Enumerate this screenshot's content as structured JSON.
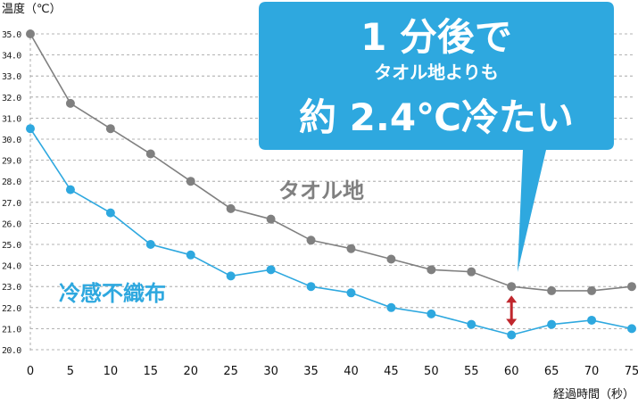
{
  "chart_data": {
    "type": "line",
    "ylabel": "温度（℃）",
    "xlabel": "経過時間（秒）",
    "x": [
      0,
      5,
      10,
      15,
      20,
      25,
      30,
      35,
      40,
      45,
      50,
      55,
      60,
      65,
      70,
      75
    ],
    "xlim": [
      0,
      75
    ],
    "ylim": [
      20.0,
      35.0
    ],
    "y_ticks": [
      "35.0",
      "34.0",
      "33.0",
      "32.0",
      "31.0",
      "30.0",
      "29.0",
      "28.0",
      "27.0",
      "26.0",
      "25.0",
      "24.0",
      "23.0",
      "22.0",
      "21.0",
      "20.0"
    ],
    "x_ticks": [
      "0",
      "5",
      "10",
      "15",
      "20",
      "25",
      "30",
      "35",
      "40",
      "45",
      "50",
      "55",
      "60",
      "65",
      "70",
      "75"
    ],
    "grid": "horizontal dashed",
    "series": [
      {
        "name": "タオル地",
        "color": "#808080",
        "values": [
          35.0,
          31.7,
          30.5,
          29.3,
          28.0,
          26.7,
          26.2,
          25.2,
          24.8,
          24.3,
          23.8,
          23.7,
          23.0,
          22.8,
          22.8,
          23.0
        ]
      },
      {
        "name": "冷感不織布",
        "color": "#2ea8df",
        "values": [
          30.5,
          27.6,
          26.5,
          25.0,
          24.5,
          23.5,
          23.8,
          23.0,
          22.7,
          22.0,
          21.7,
          21.2,
          20.7,
          21.2,
          21.4,
          21.0
        ]
      }
    ],
    "annotations": {
      "callout_line1": "1 分後で",
      "callout_line2": "タオル地よりも",
      "callout_line3": "約 2.4℃冷たい",
      "callout_color": "#2ea8df",
      "difference_arrow_color": "#c0272d",
      "difference_at_x": 60
    }
  }
}
